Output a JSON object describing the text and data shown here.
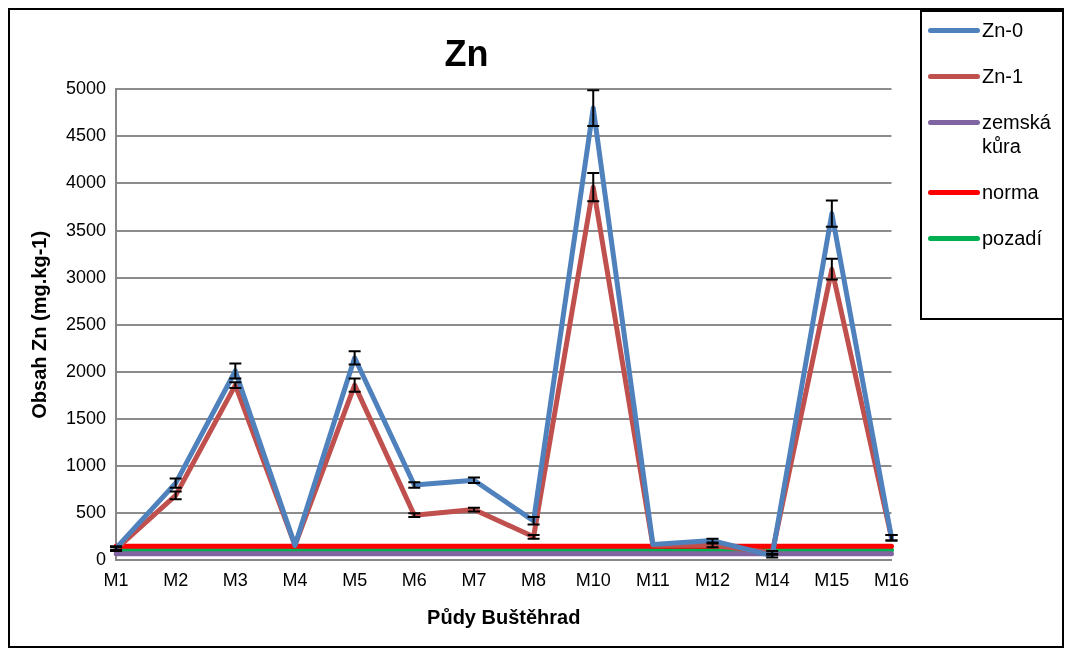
{
  "chart_data": {
    "type": "line",
    "title": "Zn",
    "xlabel": "Půdy Buštěhrad",
    "ylabel": "Obsah Zn (mg.kg-1)",
    "categories": [
      "M1",
      "M2",
      "M3",
      "M4",
      "M5",
      "M6",
      "M7",
      "M8",
      "M10",
      "M11",
      "M12",
      "M14",
      "M15",
      "M16"
    ],
    "series": [
      {
        "name": "Zn-0",
        "color": "#4f81bd",
        "values": [
          130,
          820,
          2010,
          160,
          2150,
          800,
          850,
          420,
          4800,
          170,
          210,
          50,
          3680,
          240
        ],
        "errors": [
          20,
          50,
          80,
          null,
          70,
          30,
          30,
          40,
          190,
          null,
          20,
          20,
          140,
          30
        ]
      },
      {
        "name": "Zn-1",
        "color": "#c0504d",
        "values": [
          120,
          690,
          1860,
          160,
          1860,
          480,
          540,
          250,
          3960,
          160,
          160,
          80,
          3090,
          240
        ],
        "errors": [
          20,
          40,
          30,
          null,
          70,
          20,
          20,
          20,
          150,
          null,
          20,
          20,
          110,
          30
        ]
      },
      {
        "name": "zemská kůra",
        "color": "#8064a2",
        "values": [
          70,
          70,
          70,
          70,
          70,
          70,
          70,
          70,
          70,
          70,
          70,
          70,
          70,
          70
        ]
      },
      {
        "name": "norma",
        "color": "#ff0000",
        "values": [
          150,
          150,
          150,
          150,
          150,
          150,
          150,
          150,
          150,
          150,
          150,
          150,
          150,
          150
        ]
      },
      {
        "name": "pozadí",
        "color": "#00b050",
        "values": [
          110,
          110,
          110,
          110,
          110,
          110,
          110,
          110,
          110,
          110,
          110,
          110,
          110,
          110
        ]
      }
    ],
    "ylim": [
      0,
      5000
    ],
    "yticks": [
      0,
      500,
      1000,
      1500,
      2000,
      2500,
      3000,
      3500,
      4000,
      4500,
      5000
    ],
    "grid": "y",
    "legend": "right",
    "marker": "none",
    "line_style": "solid"
  }
}
